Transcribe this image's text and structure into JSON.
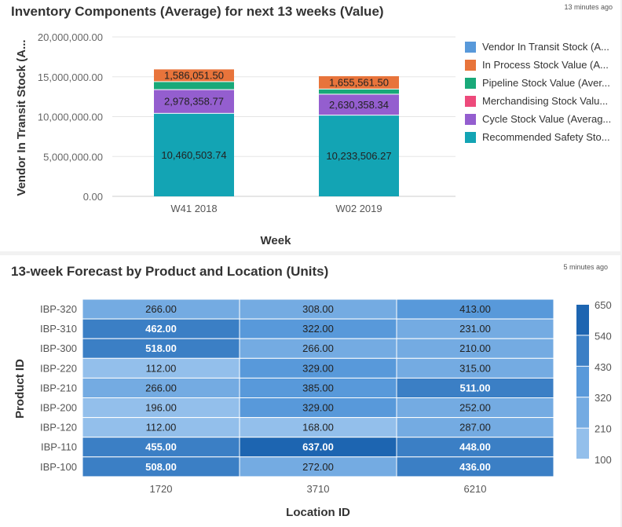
{
  "chart_data": [
    {
      "type": "bar",
      "stacked": true,
      "title": "Inventory Components (Average) for next 13 weeks (Value)",
      "timestamp": "13 minutes ago",
      "xlabel": "Week",
      "ylabel": "Vendor In Transit Stock (A...",
      "ylim": [
        0,
        20000000
      ],
      "yticks": [
        "0.00",
        "5,000,000.00",
        "10,000,000.00",
        "15,000,000.00",
        "20,000,000.00"
      ],
      "categories": [
        "W41 2018",
        "W02 2019"
      ],
      "grid": true,
      "legend_position": "right",
      "series": [
        {
          "name": "Vendor In Transit Stock (A...",
          "color": "#5899da",
          "values": [
            0,
            0
          ],
          "labels": [
            "",
            ""
          ]
        },
        {
          "name": "In Process Stock Value (A...",
          "color": "#e8743b",
          "values": [
            1586051.5,
            1655561.5
          ],
          "labels": [
            "1,586,051.50",
            "1,655,561.50"
          ]
        },
        {
          "name": "Pipeline Stock Value (Aver...",
          "color": "#19a979",
          "values": [
            1000000,
            650000
          ],
          "labels": [
            "",
            ""
          ]
        },
        {
          "name": "Merchandising Stock Valu...",
          "color": "#ed4a7b",
          "values": [
            0,
            0
          ],
          "labels": [
            "",
            ""
          ]
        },
        {
          "name": "Cycle Stock Value (Averag...",
          "color": "#945ecf",
          "values": [
            2978358.77,
            2630358.34
          ],
          "labels": [
            "2,978,358.77",
            "2,630,358.34"
          ]
        },
        {
          "name": "Recommended Safety Sto...",
          "color": "#13a4b4",
          "values": [
            10460503.74,
            10233506.27
          ],
          "labels": [
            "10,460,503.74",
            "10,233,506.27"
          ]
        }
      ]
    },
    {
      "type": "heatmap",
      "title": "13-week Forecast by Product and Location (Units)",
      "timestamp": "5 minutes ago",
      "xlabel": "Location ID",
      "ylabel": "Product ID",
      "x": [
        "1720",
        "3710",
        "6210"
      ],
      "y": [
        "IBP-320",
        "IBP-310",
        "IBP-300",
        "IBP-220",
        "IBP-210",
        "IBP-200",
        "IBP-120",
        "IBP-110",
        "IBP-100"
      ],
      "values": [
        [
          266,
          308,
          413
        ],
        [
          462,
          322,
          231
        ],
        [
          518,
          266,
          210
        ],
        [
          112,
          329,
          315
        ],
        [
          266,
          385,
          511
        ],
        [
          196,
          329,
          252
        ],
        [
          112,
          168,
          287
        ],
        [
          455,
          637,
          448
        ],
        [
          508,
          272,
          436
        ]
      ],
      "scale_ticks": [
        "100",
        "210",
        "320",
        "430",
        "540",
        "650"
      ],
      "scale_bins": [
        100,
        210,
        320,
        430,
        540,
        650
      ],
      "scale_colors": [
        "#93bfeb",
        "#74abe2",
        "#5899da",
        "#3b7fc5",
        "#1d65b1"
      ]
    }
  ]
}
